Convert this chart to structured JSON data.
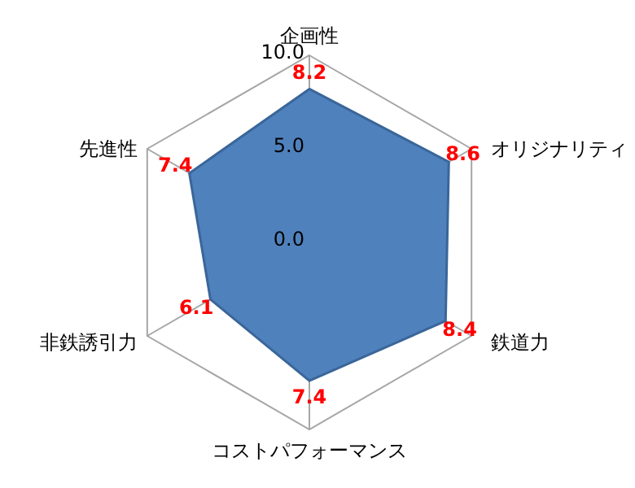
{
  "chart_data": {
    "type": "radar",
    "categories": [
      "企画性",
      "オリジナリティ",
      "鉄道力",
      "コストパフォーマンス",
      "非鉄誘引力",
      "先進性"
    ],
    "series": [
      {
        "color": "#4f81bd",
        "values": [
          8.2,
          8.6,
          8.4,
          7.4,
          6.1,
          7.4
        ]
      }
    ],
    "ylim": [
      0,
      10
    ],
    "yticks": [
      {
        "value": 0,
        "label": "0.0"
      },
      {
        "value": 5,
        "label": "5.0"
      },
      {
        "value": 10,
        "label": "10.0"
      }
    ],
    "grid": true,
    "data_labels": true
  }
}
